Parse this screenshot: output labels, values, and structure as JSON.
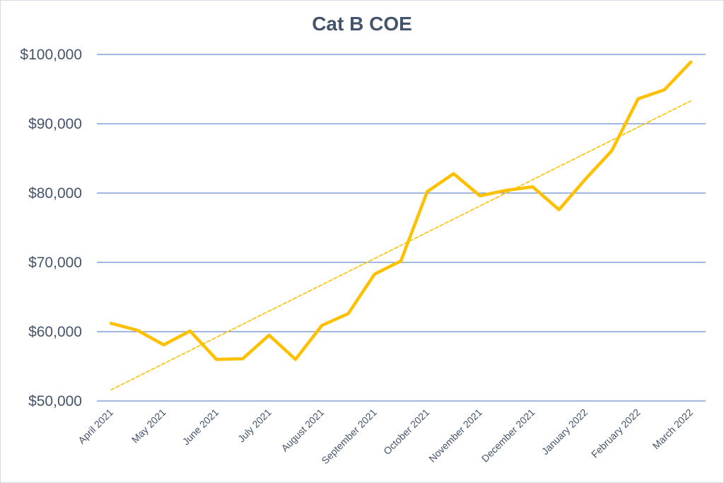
{
  "chart_data": {
    "type": "line",
    "title": "Cat B COE",
    "xlabel": "",
    "ylabel": "",
    "ylim": [
      50000,
      100000
    ],
    "y_ticks": [
      "$50,000",
      "$60,000",
      "$70,000",
      "$80,000",
      "$90,000",
      "$100,000"
    ],
    "y_tick_values": [
      50000,
      60000,
      70000,
      80000,
      90000,
      100000
    ],
    "x_tick_labels": [
      "April 2021",
      "May 2021",
      "June 2021",
      "July 2021",
      "August 2021",
      "September 2021",
      "October 2021",
      "November 2021",
      "December 2021",
      "January 2022",
      "February 2022",
      "March 2022"
    ],
    "grid": true,
    "legend": "none",
    "series": [
      {
        "values": [
          61200,
          60200,
          58100,
          60100,
          56000,
          56100,
          59500,
          56000,
          60900,
          62600,
          68300,
          70200,
          80200,
          82800,
          79600,
          80400,
          80900,
          77600,
          82000,
          86100,
          93600,
          94900,
          98900
        ],
        "color": "#ffc000",
        "style": "solid"
      },
      {
        "values": [
          51600,
          93300
        ],
        "color": "#ffc000",
        "style": "dashed",
        "kind": "linear trendline"
      }
    ],
    "colors": {
      "line": "#ffc000",
      "grid": "#4472c4",
      "text": "#44546a"
    }
  }
}
